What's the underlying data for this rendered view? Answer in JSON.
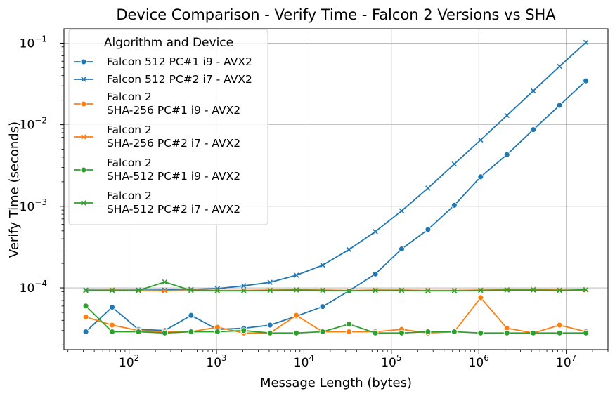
{
  "chart_data": {
    "type": "line",
    "title": "Device Comparison - Verify Time - Falcon 2 Versions vs SHA",
    "xlabel": "Message Length (bytes)",
    "ylabel": "Verify Time (seconds)",
    "xscale": "log",
    "yscale": "log",
    "xlim": [
      18,
      30000000
    ],
    "ylim": [
      1.75e-05,
      0.15
    ],
    "x_ticks": [
      {
        "value": 100,
        "base": "10",
        "exp": "2"
      },
      {
        "value": 1000,
        "base": "10",
        "exp": "3"
      },
      {
        "value": 10000,
        "base": "10",
        "exp": "4"
      },
      {
        "value": 100000,
        "base": "10",
        "exp": "5"
      },
      {
        "value": 1000000,
        "base": "10",
        "exp": "6"
      },
      {
        "value": 10000000,
        "base": "10",
        "exp": "7"
      }
    ],
    "y_ticks": [
      {
        "value": 0.0001,
        "base": "10",
        "exp": "−4"
      },
      {
        "value": 0.001,
        "base": "10",
        "exp": "−3"
      },
      {
        "value": 0.01,
        "base": "10",
        "exp": "−2"
      },
      {
        "value": 0.1,
        "base": "10",
        "exp": "−1"
      }
    ],
    "grid": true,
    "legend": {
      "title": "Algorithm and Device",
      "placement": "top-left"
    },
    "x": [
      32,
      64,
      128,
      256,
      512,
      1024,
      2048,
      4096,
      8192,
      16384,
      32768,
      65536,
      131072,
      262144,
      524288,
      1048576,
      2097152,
      4194304,
      8388608,
      16777216
    ],
    "series": [
      {
        "name": "Falcon 512 PC#1 i9 - AVX2",
        "color": "#1f77b4",
        "marker": "circle",
        "values": [
          2.9e-05,
          5.8e-05,
          3.1e-05,
          3e-05,
          4.6e-05,
          3.1e-05,
          3.2e-05,
          3.5e-05,
          4.5e-05,
          5.9e-05,
          9.2e-05,
          0.000148,
          0.0003,
          0.00052,
          0.00103,
          0.0023,
          0.0043,
          0.0087,
          0.0173,
          0.0345
        ]
      },
      {
        "name": "Falcon 512 PC#2 i7 - AVX2",
        "color": "#1f77b4",
        "marker": "x",
        "values": [
          9.4e-05,
          9.4e-05,
          9.4e-05,
          9.4e-05,
          9.6e-05,
          9.8e-05,
          0.000106,
          0.000117,
          0.000143,
          0.00019,
          0.000295,
          0.00049,
          0.00088,
          0.00167,
          0.0033,
          0.0065,
          0.013,
          0.026,
          0.052,
          0.102
        ]
      },
      {
        "name": "Falcon 2\nSHA-256 PC#1 i9 - AVX2",
        "color": "#ff7f0e",
        "marker": "circle",
        "values": [
          4.4e-05,
          3.5e-05,
          3e-05,
          2.9e-05,
          2.9e-05,
          3.3e-05,
          2.8e-05,
          2.8e-05,
          4.6e-05,
          2.9e-05,
          2.9e-05,
          2.9e-05,
          3.1e-05,
          2.8e-05,
          2.9e-05,
          7.6e-05,
          3.2e-05,
          2.8e-05,
          3.5e-05,
          2.9e-05
        ]
      },
      {
        "name": "Falcon 2\nSHA-256 PC#2 i7 - AVX2",
        "color": "#ff7f0e",
        "marker": "x",
        "values": [
          9.3e-05,
          9.4e-05,
          9.3e-05,
          9.2e-05,
          9.4e-05,
          9.3e-05,
          9.3e-05,
          9.4e-05,
          9.5e-05,
          9.4e-05,
          9.3e-05,
          9.4e-05,
          9.4e-05,
          9.3e-05,
          9.3e-05,
          9.4e-05,
          9.5e-05,
          9.6e-05,
          9.4e-05,
          9.4e-05
        ]
      },
      {
        "name": "Falcon 2\nSHA-512 PC#1 i9 - AVX2",
        "color": "#2ca02c",
        "marker": "circle",
        "values": [
          6e-05,
          2.9e-05,
          2.9e-05,
          2.8e-05,
          2.9e-05,
          2.9e-05,
          3e-05,
          2.8e-05,
          2.8e-05,
          2.9e-05,
          3.6e-05,
          2.8e-05,
          2.8e-05,
          2.9e-05,
          2.9e-05,
          2.8e-05,
          2.8e-05,
          2.8e-05,
          2.8e-05,
          2.8e-05
        ]
      },
      {
        "name": "Falcon 2\nSHA-512 PC#2 i7 - AVX2",
        "color": "#2ca02c",
        "marker": "x",
        "values": [
          9.3e-05,
          9.3e-05,
          9.3e-05,
          0.000118,
          9.3e-05,
          9.2e-05,
          9.2e-05,
          9.3e-05,
          9.4e-05,
          9.3e-05,
          9.2e-05,
          9.3e-05,
          9.3e-05,
          9.2e-05,
          9.2e-05,
          9.3e-05,
          9.4e-05,
          9.4e-05,
          9.3e-05,
          9.5e-05
        ]
      }
    ]
  }
}
